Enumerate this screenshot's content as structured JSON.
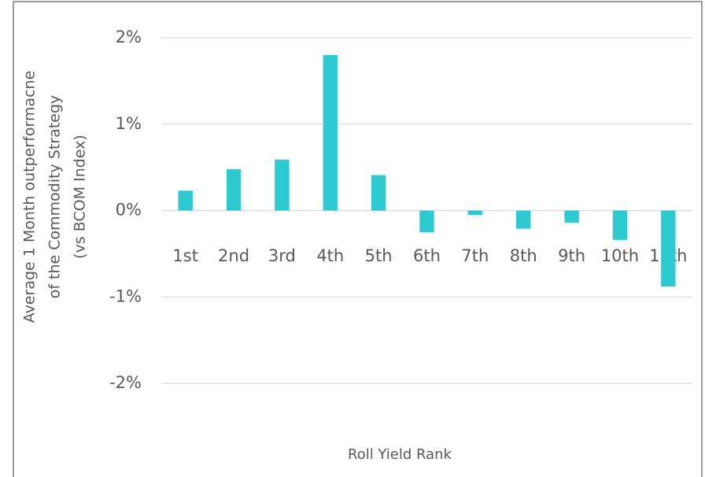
{
  "chart_data": {
    "type": "bar",
    "y_label": [
      "Average 1 Month outperformacne",
      "of the Commodity Strategy",
      "(vs BCOM Index)"
    ],
    "x_label": "Roll Yield Rank",
    "categories": [
      "1st",
      "2nd",
      "3rd",
      "4th",
      "5th",
      "6th",
      "7th",
      "8th",
      "9th",
      "10th",
      "11th"
    ],
    "values": [
      0.23,
      0.48,
      0.59,
      1.8,
      0.41,
      -0.25,
      -0.05,
      -0.21,
      -0.14,
      -0.34,
      -0.88
    ],
    "color": "#2ecad2",
    "ylim": [
      -2,
      2
    ],
    "yticks": [
      {
        "value": -2,
        "label": "-2%"
      },
      {
        "value": -1,
        "label": "-1%"
      },
      {
        "value": 0,
        "label": "0%"
      },
      {
        "value": 1,
        "label": "1%"
      },
      {
        "value": 2,
        "label": "2%"
      }
    ],
    "grid": true
  }
}
